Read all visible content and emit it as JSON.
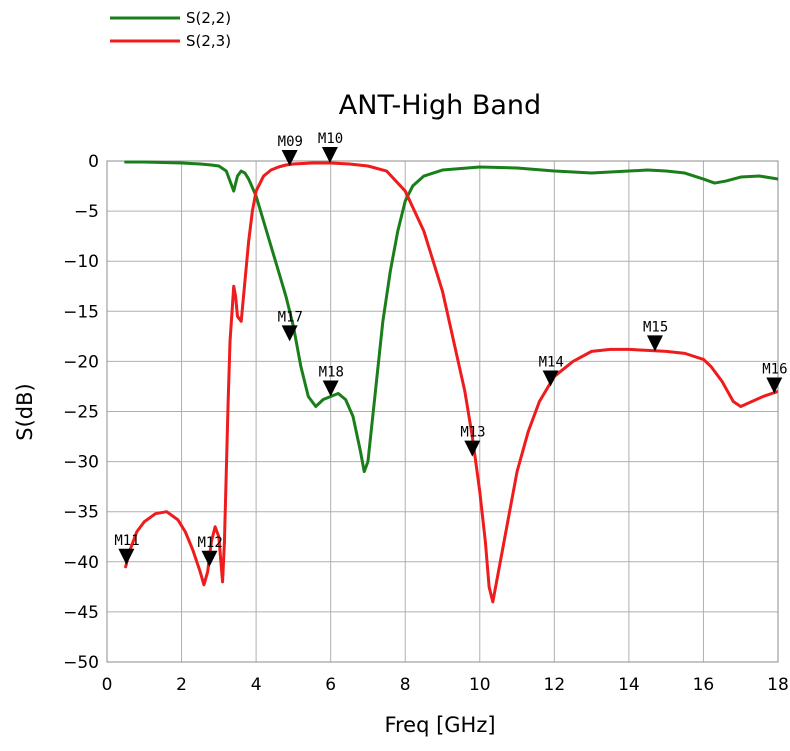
{
  "chart_data": {
    "type": "line",
    "title": "ANT-High Band",
    "xlabel": "Freq [GHz]",
    "ylabel": "S(dB)",
    "xlim": [
      0,
      18
    ],
    "ylim": [
      -50,
      0
    ],
    "x_ticks": [
      0,
      2,
      4,
      6,
      8,
      10,
      12,
      14,
      16,
      18
    ],
    "y_ticks": [
      0,
      -5,
      -10,
      -15,
      -20,
      -25,
      -30,
      -35,
      -40,
      -45,
      -50
    ],
    "x_tick_labels": [
      "0",
      "2",
      "4",
      "6",
      "8",
      "10",
      "12",
      "14",
      "16",
      "18"
    ],
    "y_tick_labels": [
      "0",
      "−5",
      "−10",
      "−15",
      "−20",
      "−25",
      "−30",
      "−35",
      "−40",
      "−45",
      "−50"
    ],
    "grid": true,
    "legend_position": "top-left",
    "series": [
      {
        "name": "S(2,2)",
        "color": "#1a7f1a",
        "x": [
          0.5,
          1.0,
          1.5,
          2.0,
          2.5,
          2.8,
          3.0,
          3.2,
          3.3,
          3.4,
          3.5,
          3.6,
          3.7,
          3.8,
          4.0,
          4.2,
          4.4,
          4.6,
          4.8,
          5.0,
          5.2,
          5.4,
          5.6,
          5.8,
          6.0,
          6.2,
          6.4,
          6.6,
          6.8,
          6.9,
          7.0,
          7.2,
          7.4,
          7.6,
          7.8,
          8.0,
          8.2,
          8.5,
          9.0,
          10.0,
          11.0,
          12.0,
          12.5,
          13.0,
          13.5,
          14.0,
          14.5,
          15.0,
          15.5,
          16.0,
          16.3,
          16.6,
          17.0,
          17.5,
          18.0
        ],
        "values": [
          -0.1,
          -0.1,
          -0.15,
          -0.2,
          -0.3,
          -0.4,
          -0.5,
          -1.0,
          -2.0,
          -3.0,
          -1.5,
          -1.0,
          -1.2,
          -1.8,
          -3.5,
          -6.0,
          -8.5,
          -11.0,
          -13.5,
          -16.5,
          -20.5,
          -23.5,
          -24.5,
          -23.8,
          -23.5,
          -23.2,
          -23.8,
          -25.5,
          -29.0,
          -31.0,
          -30.0,
          -23.0,
          -16.0,
          -11.0,
          -7.0,
          -4.0,
          -2.5,
          -1.5,
          -0.9,
          -0.6,
          -0.7,
          -1.0,
          -1.1,
          -1.2,
          -1.1,
          -1.0,
          -0.9,
          -1.0,
          -1.2,
          -1.8,
          -2.2,
          -2.0,
          -1.6,
          -1.5,
          -1.8
        ]
      },
      {
        "name": "S(2,3)",
        "color": "#ee1c1c",
        "x": [
          0.5,
          0.6,
          0.8,
          1.0,
          1.3,
          1.6,
          1.9,
          2.1,
          2.3,
          2.5,
          2.6,
          2.7,
          2.8,
          2.9,
          3.0,
          3.1,
          3.15,
          3.2,
          3.25,
          3.3,
          3.4,
          3.45,
          3.5,
          3.6,
          3.7,
          3.8,
          3.9,
          4.0,
          4.2,
          4.4,
          4.6,
          4.8,
          5.0,
          5.5,
          6.0,
          6.5,
          7.0,
          7.5,
          8.0,
          8.5,
          9.0,
          9.3,
          9.6,
          9.8,
          10.0,
          10.15,
          10.25,
          10.35,
          10.5,
          10.8,
          11.0,
          11.3,
          11.6,
          12.0,
          12.5,
          13.0,
          13.5,
          14.0,
          14.5,
          15.0,
          15.5,
          16.0,
          16.2,
          16.5,
          16.8,
          17.0,
          17.3,
          17.6,
          18.0
        ],
        "values": [
          -40.5,
          -39.0,
          -37.0,
          -36.0,
          -35.2,
          -35.0,
          -35.8,
          -37.0,
          -38.8,
          -41.0,
          -42.3,
          -41.0,
          -38.0,
          -36.5,
          -37.5,
          -42.0,
          -38.0,
          -31.0,
          -24.0,
          -18.0,
          -12.5,
          -13.5,
          -15.5,
          -16.0,
          -12.0,
          -8.0,
          -5.0,
          -3.0,
          -1.5,
          -0.9,
          -0.6,
          -0.4,
          -0.3,
          -0.2,
          -0.2,
          -0.3,
          -0.5,
          -1.0,
          -3.0,
          -7.0,
          -13.0,
          -18.0,
          -23.0,
          -27.5,
          -33.0,
          -38.0,
          -42.5,
          -44.0,
          -41.0,
          -35.0,
          -31.0,
          -27.0,
          -24.0,
          -21.5,
          -20.0,
          -19.0,
          -18.8,
          -18.8,
          -18.9,
          -19.0,
          -19.2,
          -19.8,
          -20.5,
          -22.0,
          -24.0,
          -24.5,
          -24.0,
          -23.5,
          -23.0
        ]
      }
    ],
    "markers": [
      {
        "label": "M09",
        "x": 4.9,
        "y": -0.5
      },
      {
        "label": "M10",
        "x": 5.98,
        "y": -0.2
      },
      {
        "label": "M11",
        "x": 0.52,
        "y": -40.3
      },
      {
        "label": "M12",
        "x": 2.75,
        "y": -40.5
      },
      {
        "label": "M13",
        "x": 9.8,
        "y": -29.5
      },
      {
        "label": "M14",
        "x": 11.9,
        "y": -22.5
      },
      {
        "label": "M15",
        "x": 14.7,
        "y": -19.0
      },
      {
        "label": "M16",
        "x": 17.9,
        "y": -23.2
      },
      {
        "label": "M17",
        "x": 4.9,
        "y": -18.0
      },
      {
        "label": "M18",
        "x": 6.0,
        "y": -23.5
      }
    ]
  }
}
